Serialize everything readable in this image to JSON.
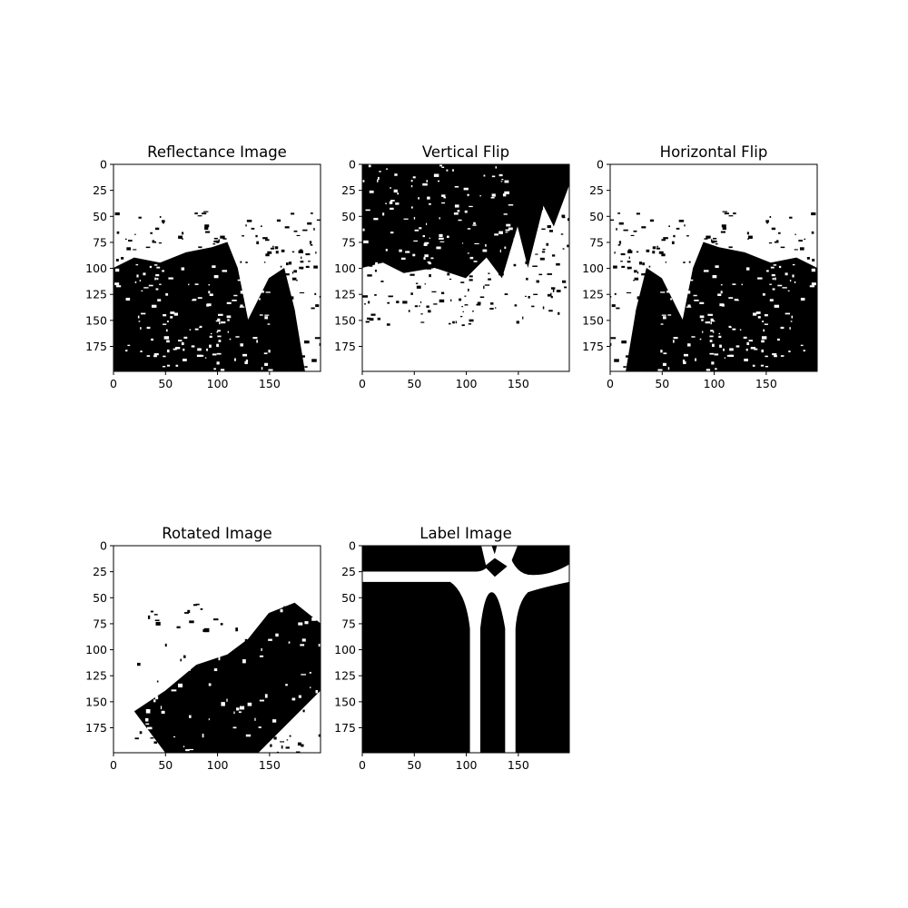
{
  "chart_data": [
    {
      "type": "heatmap",
      "title": "Reflectance Image",
      "colormap": "binary",
      "colors": {
        "low": "#000000",
        "high": "#ffffff"
      },
      "xlim": [
        0,
        199
      ],
      "ylim": [
        199,
        0
      ],
      "xticks": [
        0,
        50,
        100,
        150
      ],
      "yticks": [
        0,
        25,
        50,
        75,
        100,
        125,
        150,
        175
      ]
    },
    {
      "type": "heatmap",
      "title": "Vertical Flip",
      "colormap": "binary",
      "colors": {
        "low": "#000000",
        "high": "#ffffff"
      },
      "xlim": [
        0,
        199
      ],
      "ylim": [
        199,
        0
      ],
      "xticks": [
        0,
        50,
        100,
        150
      ],
      "yticks": [
        0,
        25,
        50,
        75,
        100,
        125,
        150,
        175
      ]
    },
    {
      "type": "heatmap",
      "title": "Horizontal Flip",
      "colormap": "binary",
      "colors": {
        "low": "#000000",
        "high": "#ffffff"
      },
      "xlim": [
        0,
        199
      ],
      "ylim": [
        199,
        0
      ],
      "xticks": [
        0,
        50,
        100,
        150
      ],
      "yticks": [
        0,
        25,
        50,
        75,
        100,
        125,
        150,
        175
      ]
    },
    {
      "type": "heatmap",
      "title": "Rotated Image",
      "colormap": "binary",
      "colors": {
        "low": "#000000",
        "high": "#ffffff"
      },
      "xlim": [
        0,
        199
      ],
      "ylim": [
        199,
        0
      ],
      "xticks": [
        0,
        50,
        100,
        150
      ],
      "yticks": [
        0,
        25,
        50,
        75,
        100,
        125,
        150,
        175
      ]
    },
    {
      "type": "heatmap",
      "title": "Label Image",
      "colormap": "binary",
      "colors": {
        "low": "#000000",
        "high": "#ffffff"
      },
      "xlim": [
        0,
        199
      ],
      "ylim": [
        199,
        0
      ],
      "xticks": [
        0,
        50,
        100,
        150
      ],
      "yticks": [
        0,
        25,
        50,
        75,
        100,
        125,
        150,
        175
      ]
    }
  ]
}
